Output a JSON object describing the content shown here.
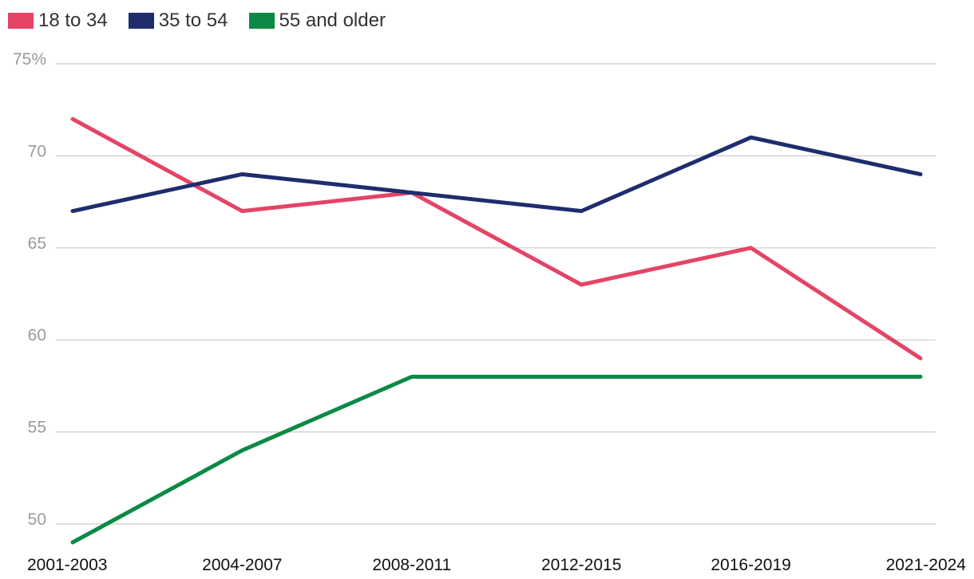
{
  "chart_data": {
    "type": "line",
    "categories": [
      "2001-2003",
      "2004-2007",
      "2008-2011",
      "2012-2015",
      "2016-2019",
      "2021-2024"
    ],
    "series": [
      {
        "name": "18 to 34",
        "color": "#e44466",
        "values": [
          72,
          67,
          68,
          63,
          65,
          59
        ]
      },
      {
        "name": "35 to 54",
        "color": "#1f2d6e",
        "values": [
          67,
          69,
          68,
          67,
          71,
          69
        ]
      },
      {
        "name": "55 and older",
        "color": "#0b8a45",
        "values": [
          49,
          54,
          58,
          58,
          58,
          58
        ]
      }
    ],
    "y_ticks": [
      {
        "value": 75,
        "label": "75%"
      },
      {
        "value": 70,
        "label": "70"
      },
      {
        "value": 65,
        "label": "65"
      },
      {
        "value": 60,
        "label": "60"
      },
      {
        "value": 55,
        "label": "55"
      },
      {
        "value": 50,
        "label": "50"
      }
    ],
    "ylim": [
      50,
      75
    ],
    "grid": true,
    "legend": "top-left"
  }
}
